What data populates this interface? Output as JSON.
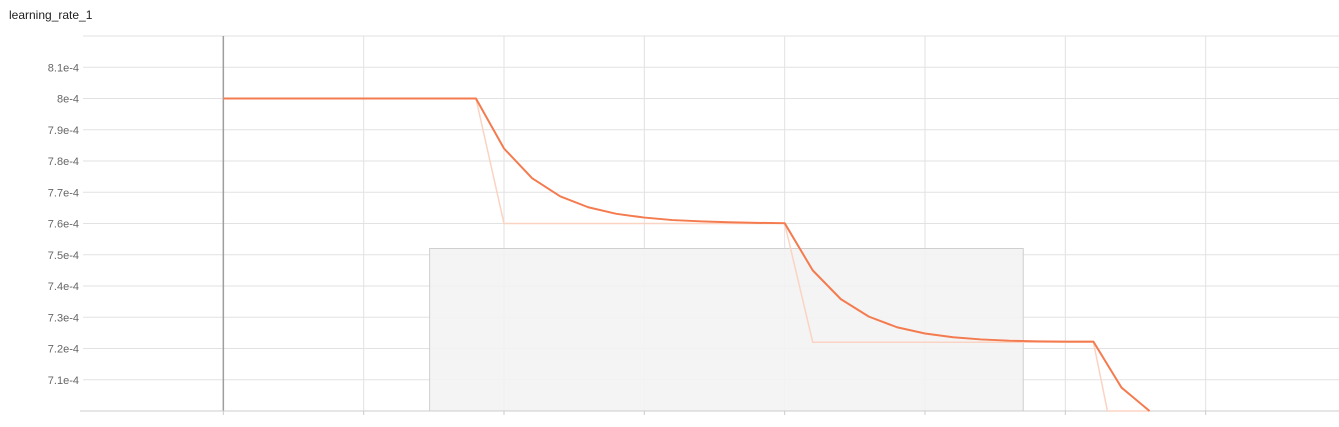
{
  "title": "learning_rate_1",
  "colors": {
    "smoothed_line": "#f47b4f",
    "raw_line": "#fbd3c3",
    "grid": "#e2e2e2",
    "cursor_line": "#9e9e9e",
    "tooltip_box_fill": "#f3f3f3",
    "tooltip_box_stroke": "#cfcfcf"
  },
  "chart_data": {
    "type": "line",
    "title": "learning_rate_1",
    "xlabel": "",
    "ylabel": "",
    "xlim": [
      -1,
      7.95
    ],
    "ylim": [
      0.0007,
      0.00082
    ],
    "x_gridlines": [
      0,
      1,
      2,
      3,
      4,
      5,
      6,
      7
    ],
    "y_ticks": [
      0.00071,
      0.00072,
      0.00073,
      0.00074,
      0.00075,
      0.00076,
      0.00077,
      0.00078,
      0.00079,
      0.0008,
      0.00081
    ],
    "y_tick_labels": [
      "7.1e-4",
      "7.2e-4",
      "7.3e-4",
      "7.4e-4",
      "7.5e-4",
      "7.6e-4",
      "7.7e-4",
      "7.8e-4",
      "7.9e-4",
      "8e-4",
      "8.1e-4"
    ],
    "grid": true,
    "cursor_x": 0,
    "series": [
      {
        "role": "smoothed",
        "x": [
          0,
          1.8,
          2.0,
          2.2,
          2.4,
          2.6,
          2.8,
          3.0,
          3.2,
          3.4,
          3.6,
          3.8,
          4.0,
          4.2,
          4.4,
          4.6,
          4.8,
          5.0,
          5.2,
          5.4,
          5.6,
          5.8,
          6.0,
          6.2,
          6.4,
          6.6
        ],
        "values": [
          0.0008,
          0.0008,
          0.000784,
          0.0007745,
          0.0007687,
          0.0007652,
          0.0007631,
          0.0007619,
          0.0007611,
          0.0007607,
          0.0007604,
          0.0007602,
          0.0007601,
          0.000745,
          0.0007358,
          0.0007302,
          0.0007268,
          0.0007248,
          0.0007236,
          0.0007229,
          0.0007225,
          0.0007223,
          0.0007222,
          0.0007222,
          0.0007075,
          0.0007
        ]
      },
      {
        "role": "raw",
        "x": [
          0,
          1.8,
          2.0,
          4.0,
          4.2,
          6.0,
          6.2,
          6.3,
          6.6
        ],
        "values": [
          0.0008,
          0.0008,
          0.00076,
          0.00076,
          0.000722,
          0.000722,
          0.000722,
          0.0007,
          0.0007
        ]
      }
    ],
    "highlight_box": {
      "x": [
        1.47,
        5.7
      ],
      "y": [
        0.0007,
        0.000752
      ]
    }
  }
}
